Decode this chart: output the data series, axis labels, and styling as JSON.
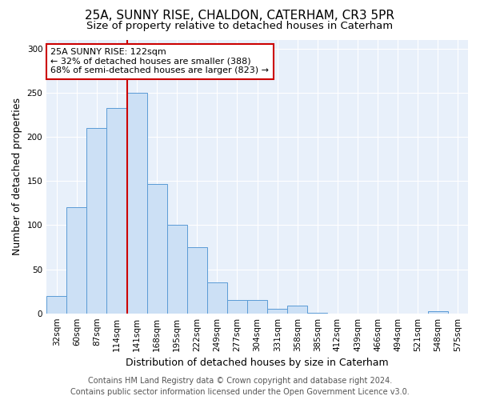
{
  "title1": "25A, SUNNY RISE, CHALDON, CATERHAM, CR3 5PR",
  "title2": "Size of property relative to detached houses in Caterham",
  "xlabel": "Distribution of detached houses by size in Caterham",
  "ylabel": "Number of detached properties",
  "categories": [
    "32sqm",
    "60sqm",
    "87sqm",
    "114sqm",
    "141sqm",
    "168sqm",
    "195sqm",
    "222sqm",
    "249sqm",
    "277sqm",
    "304sqm",
    "331sqm",
    "358sqm",
    "385sqm",
    "412sqm",
    "439sqm",
    "466sqm",
    "494sqm",
    "521sqm",
    "548sqm",
    "575sqm"
  ],
  "values": [
    20,
    120,
    210,
    233,
    250,
    147,
    100,
    75,
    35,
    15,
    15,
    5,
    9,
    1,
    0,
    0,
    0,
    0,
    0,
    2,
    0
  ],
  "bar_color": "#cce0f5",
  "bar_edge_color": "#5b9bd5",
  "property_line_x": 3.5,
  "annotation_text": "25A SUNNY RISE: 122sqm\n← 32% of detached houses are smaller (388)\n68% of semi-detached houses are larger (823) →",
  "annotation_box_color": "#ffffff",
  "annotation_box_edge": "#cc0000",
  "line_color": "#cc0000",
  "ylim": [
    0,
    310
  ],
  "yticks": [
    0,
    50,
    100,
    150,
    200,
    250,
    300
  ],
  "footer1": "Contains HM Land Registry data © Crown copyright and database right 2024.",
  "footer2": "Contains public sector information licensed under the Open Government Licence v3.0.",
  "fig_bg_color": "#ffffff",
  "plot_bg": "#e8f0fa",
  "title_fontsize": 11,
  "subtitle_fontsize": 9.5,
  "tick_fontsize": 7.5,
  "label_fontsize": 9,
  "footer_fontsize": 7,
  "annotation_fontsize": 8
}
